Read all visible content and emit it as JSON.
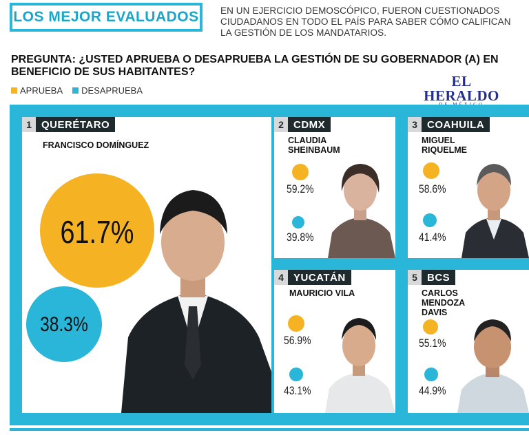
{
  "header": {
    "title": "LOS MEJOR EVALUADOS",
    "intro": "EN UN EJERCICIO DEMOSCÓPICO, FUERON CUESTIONADOS CIUDADANOS EN TODO EL PAÍS PARA SABER CÓMO CALIFICAN LA GESTIÓN DE LOS MANDATARIOS.",
    "question": "PREGUNTA: ¿USTED APRUEBA O DESAPRUEBA LA GESTIÓN DE SU GOBERNADOR (A) EN BENEFICIO DE SUS HABITANTES?"
  },
  "legend": {
    "approve": "APRUEBA",
    "disapprove": "DESAPRUEBA"
  },
  "logo": {
    "main": "EL HERALDO",
    "sub": "DE MÉXICO"
  },
  "colors": {
    "approve": "#f5b324",
    "disapprove": "#29b6d8",
    "panel": "#29b6d8",
    "label_bg": "#1f2a2e"
  },
  "chart_data": {
    "type": "bar",
    "title": "LOS MEJOR EVALUADOS",
    "categories": [
      "QUERÉTARO",
      "CDMX",
      "COAHUILA",
      "YUCATÁN",
      "BCS"
    ],
    "ranks": [
      "1",
      "2",
      "3",
      "4",
      "5"
    ],
    "governors": [
      "FRANCISCO DOMÍNGUEZ",
      "CLAUDIA SHEINBAUM",
      "MIGUEL RIQUELME",
      "MAURICIO VILA",
      "CARLOS MENDOZA DAVIS"
    ],
    "series": [
      {
        "name": "APRUEBA",
        "values": [
          61.7,
          59.2,
          58.6,
          56.9,
          55.1
        ]
      },
      {
        "name": "DESAPRUEBA",
        "values": [
          38.3,
          39.8,
          41.4,
          43.1,
          44.9
        ]
      }
    ],
    "labels": {
      "approve": [
        "61.7%",
        "59.2%",
        "58.6%",
        "56.9%",
        "55.1%"
      ],
      "disapprove": [
        "38.3%",
        "39.8%",
        "41.4%",
        "43.1%",
        "44.9%"
      ]
    }
  }
}
